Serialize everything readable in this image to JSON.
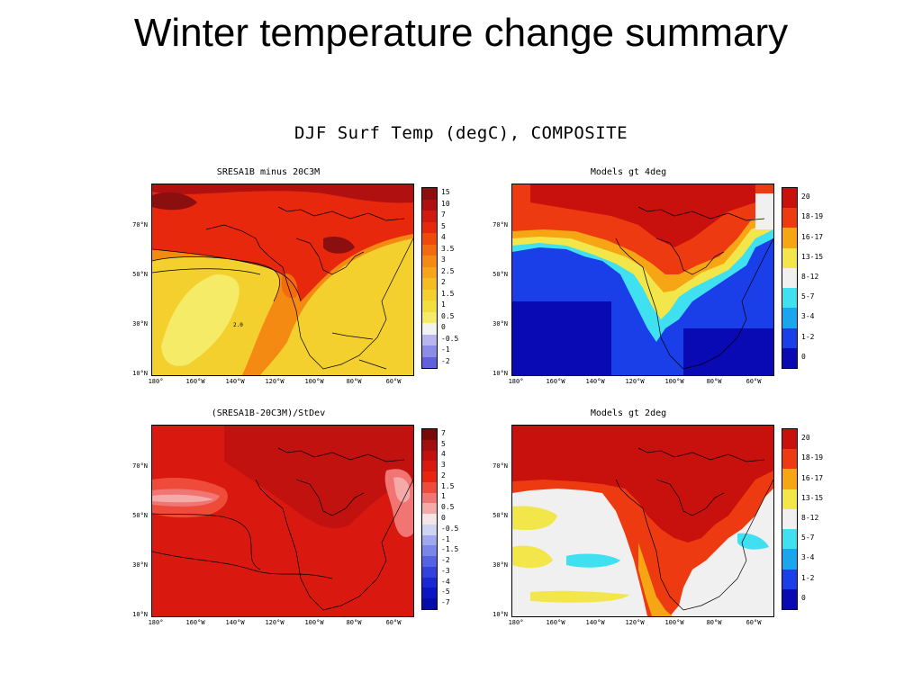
{
  "slide": {
    "title": "Winter temperature change summary",
    "figure_title": "DJF Surf Temp (degC), COMPOSITE"
  },
  "lat_labels": [
    "70°N",
    "50°N",
    "30°N",
    "10°N"
  ],
  "lon_labels": [
    "180°",
    "160°W",
    "140°W",
    "120°W",
    "100°W",
    "80°W",
    "60°W"
  ],
  "panels": [
    {
      "title": "SRESA1B minus 20C3M",
      "map_annotation": "2.0",
      "colorbar": {
        "labels": [
          "15",
          "10",
          "7",
          "5",
          "4",
          "3.5",
          "3",
          "2.5",
          "2",
          "1.5",
          "1",
          "0.5",
          "0",
          "-0.5",
          "-1",
          "-2"
        ],
        "colors": [
          "#8b0f0f",
          "#b01010",
          "#d11a0f",
          "#e8280c",
          "#ef4a0c",
          "#f26b0e",
          "#f48a12",
          "#f6a51a",
          "#f5bd24",
          "#f3d02e",
          "#f2de3e",
          "#f5eb66",
          "#f2f2f2",
          "#b7b7ee",
          "#8d8de8",
          "#6161e0"
        ]
      },
      "fills": [
        {
          "color": "#f3d02e",
          "y": 0.0,
          "h": 1.0
        },
        {
          "color": "#f48a12",
          "y": 0.38,
          "h": 0.18
        },
        {
          "color": "#e8280c",
          "y": 0.0,
          "h": 0.35
        },
        {
          "color": "#b01010",
          "y": 0.0,
          "h": 0.12
        }
      ]
    },
    {
      "title": "Models gt 4deg",
      "colorbar": {
        "labels": [
          "20",
          "18-19",
          "16-17",
          "13-15",
          "8-12",
          "5-7",
          "3-4",
          "1-2",
          "0"
        ],
        "colors": [
          "#c8100d",
          "#ee3a10",
          "#f6a514",
          "#f3e64a",
          "#f0f0f0",
          "#3fe0ef",
          "#1aa6ef",
          "#1a3fe8",
          "#0a0ab5"
        ]
      }
    },
    {
      "title": "(SRESA1B-20C3M)/StDev",
      "colorbar": {
        "labels": [
          "7",
          "5",
          "4",
          "3",
          "2",
          "1.5",
          "1",
          "0.5",
          "0",
          "-0.5",
          "-1",
          "-1.5",
          "-2",
          "-3",
          "-4",
          "-5",
          "-7"
        ],
        "colors": [
          "#7a0a0a",
          "#a10f0f",
          "#c2120f",
          "#d9190f",
          "#e8250f",
          "#ef4b3a",
          "#f07573",
          "#f5aaaa",
          "#f5e5e5",
          "#cfd4f5",
          "#9fa9ef",
          "#7b86ea",
          "#5563e2",
          "#3342dc",
          "#1a28d2",
          "#0b16c2",
          "#050ca8"
        ]
      }
    },
    {
      "title": "Models gt 2deg",
      "colorbar": {
        "labels": [
          "20",
          "18-19",
          "16-17",
          "13-15",
          "8-12",
          "5-7",
          "3-4",
          "1-2",
          "0"
        ],
        "colors": [
          "#c8100d",
          "#ee3a10",
          "#f6a514",
          "#f3e64a",
          "#f0f0f0",
          "#3fe0ef",
          "#1aa6ef",
          "#1a3fe8",
          "#0a0ab5"
        ]
      }
    }
  ]
}
